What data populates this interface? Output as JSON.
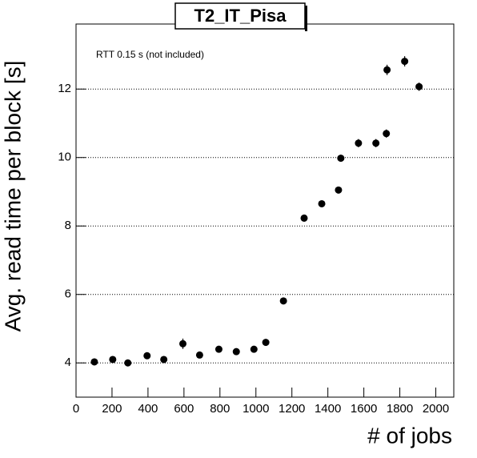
{
  "chart_data": {
    "type": "scatter",
    "title": "T2_IT_Pisa",
    "annotation": "RTT 0.15 s (not included)",
    "x_label": "# of jobs",
    "y_label": "Avg. read time per block [s]",
    "x": [
      102,
      204,
      288,
      395,
      488,
      594,
      687,
      794,
      891,
      989,
      1055,
      1153,
      1268,
      1366,
      1459,
      1472,
      1570,
      1667,
      1725,
      1729,
      1827,
      1907
    ],
    "values": [
      4.03,
      4.1,
      4.0,
      4.21,
      4.1,
      4.56,
      4.23,
      4.4,
      4.33,
      4.4,
      4.6,
      5.81,
      8.23,
      8.65,
      9.05,
      9.98,
      10.42,
      10.42,
      10.7,
      12.56,
      12.81,
      12.07
    ],
    "errors": [
      0.1,
      0.07,
      0.07,
      0.08,
      0.07,
      0.15,
      0.08,
      0.08,
      0.07,
      0.08,
      0.1,
      0.07,
      0.1,
      0.08,
      0.1,
      0.1,
      0.12,
      0.12,
      0.12,
      0.15,
      0.15,
      0.12
    ],
    "color": "#000000",
    "xlim": [
      0,
      2100
    ],
    "xticks": [
      0,
      200,
      400,
      600,
      800,
      1000,
      1200,
      1400,
      1600,
      1800,
      2000
    ],
    "ylim": [
      3,
      13.9
    ],
    "yticks": [
      4,
      6,
      8,
      10,
      12
    ],
    "grid": true
  }
}
